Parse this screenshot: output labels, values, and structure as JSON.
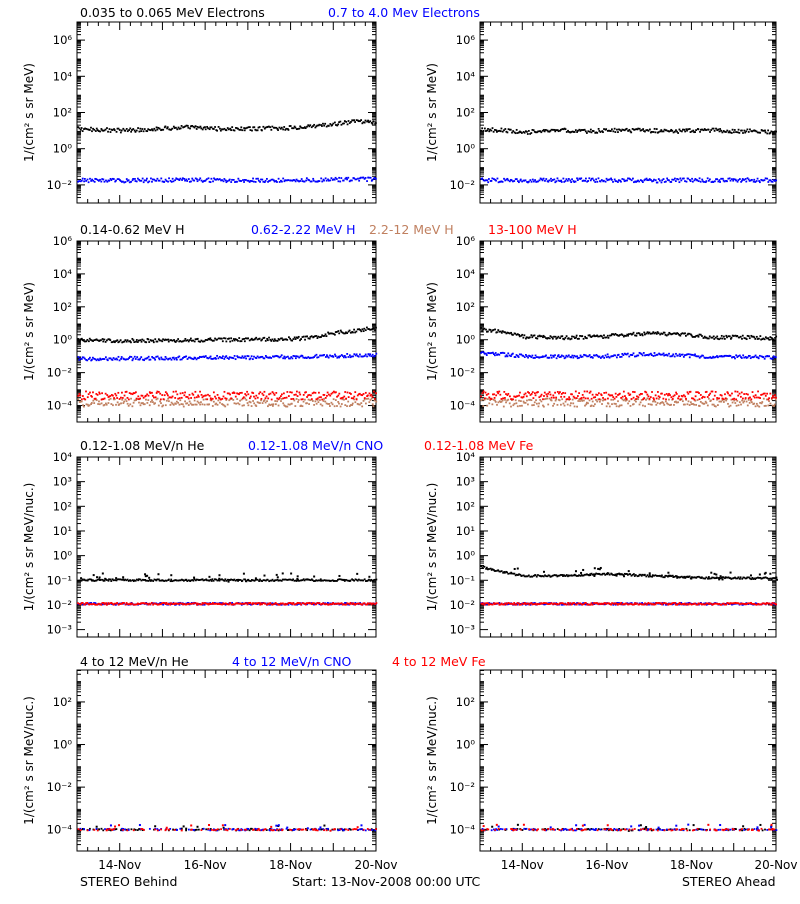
{
  "colors": {
    "black": "#000000",
    "blue": "#0000ff",
    "tan": "#c08060",
    "red": "#ff0000"
  },
  "footer": {
    "left": "STEREO Behind",
    "center": "Start: 13-Nov-2008 00:00 UTC",
    "right": "STEREO Ahead"
  },
  "x_ticks": [
    "14-Nov",
    "16-Nov",
    "18-Nov",
    "20-Nov"
  ],
  "rows": [
    {
      "ylabel": "1/(cm² s sr MeV)",
      "yticks": [
        {
          "v": -2,
          "label": "10⁻²"
        },
        {
          "v": 0,
          "label": "10⁰"
        },
        {
          "v": 2,
          "label": "10²"
        },
        {
          "v": 4,
          "label": "10⁴"
        },
        {
          "v": 6,
          "label": "10⁶"
        }
      ],
      "ylim_log10": [
        -3,
        7
      ],
      "legend": [
        {
          "text": "0.035 to 0.065 MeV Electrons",
          "color": "black"
        },
        {
          "text": "0.7 to 4.0 Mev Electrons",
          "color": "blue"
        }
      ]
    },
    {
      "ylabel": "1/(cm² s sr MeV)",
      "yticks": [
        {
          "v": -4,
          "label": "10⁻⁴"
        },
        {
          "v": -2,
          "label": "10⁻²"
        },
        {
          "v": 0,
          "label": "10⁰"
        },
        {
          "v": 2,
          "label": "10²"
        },
        {
          "v": 4,
          "label": "10⁴"
        },
        {
          "v": 6,
          "label": "10⁶"
        }
      ],
      "ylim_log10": [
        -5,
        6
      ],
      "legend": [
        {
          "text": "0.14-0.62 MeV H",
          "color": "black"
        },
        {
          "text": "0.62-2.22 MeV H",
          "color": "blue"
        },
        {
          "text": "2.2-12 MeV H",
          "color": "tan"
        },
        {
          "text": "13-100 MeV H",
          "color": "red"
        }
      ]
    },
    {
      "ylabel": "1/(cm² s sr MeV/nuc.)",
      "yticks": [
        {
          "v": -3,
          "label": "10⁻³"
        },
        {
          "v": -2,
          "label": "10⁻²"
        },
        {
          "v": -1,
          "label": "10⁻¹"
        },
        {
          "v": 0,
          "label": "10⁰"
        },
        {
          "v": 1,
          "label": "10¹"
        },
        {
          "v": 2,
          "label": "10²"
        },
        {
          "v": 3,
          "label": "10³"
        },
        {
          "v": 4,
          "label": "10⁴"
        }
      ],
      "ylim_log10": [
        -3.3,
        4
      ],
      "legend": [
        {
          "text": "0.12-1.08 MeV/n He",
          "color": "black"
        },
        {
          "text": "0.12-1.08 MeV/n CNO",
          "color": "blue"
        },
        {
          "text": "0.12-1.08 MeV Fe",
          "color": "red"
        }
      ]
    },
    {
      "ylabel": "1/(cm² s sr MeV/nuc.)",
      "yticks": [
        {
          "v": -4,
          "label": "10⁻⁴"
        },
        {
          "v": -2,
          "label": "10⁻²"
        },
        {
          "v": 0,
          "label": "10⁰"
        },
        {
          "v": 2,
          "label": "10²"
        }
      ],
      "ylim_log10": [
        -5,
        3.5
      ],
      "legend": [
        {
          "text": "4 to 12 MeV/n He",
          "color": "black"
        },
        {
          "text": "4 to 12 MeV/n CNO",
          "color": "blue"
        },
        {
          "text": "4 to 12 MeV Fe",
          "color": "red"
        }
      ]
    }
  ],
  "chart_data": [
    {
      "type": "scatter",
      "panel": "behind-electrons",
      "ylog": true,
      "xlim_days": [
        13,
        20
      ],
      "series": [
        {
          "name": "0.035 to 0.065 MeV Electrons",
          "color": "black",
          "x": [
            13,
            13.5,
            14,
            14.5,
            15,
            15.5,
            16,
            16.5,
            17,
            17.5,
            18,
            18.5,
            19,
            19.5,
            20
          ],
          "y": [
            12,
            11,
            10,
            11,
            13,
            15,
            13,
            12,
            12,
            13,
            14,
            16,
            22,
            30,
            28
          ]
        },
        {
          "name": "0.7 to 4.0 Mev Electrons",
          "color": "blue",
          "x": [
            13,
            14,
            15,
            16,
            17,
            18,
            19,
            20
          ],
          "y": [
            0.018,
            0.017,
            0.018,
            0.018,
            0.018,
            0.018,
            0.019,
            0.02
          ]
        }
      ]
    },
    {
      "type": "scatter",
      "panel": "ahead-electrons",
      "ylog": true,
      "xlim_days": [
        13,
        20
      ],
      "series": [
        {
          "name": "0.035 to 0.065 MeV Electrons",
          "color": "black",
          "x": [
            13,
            13.5,
            14,
            14.5,
            15,
            15.5,
            16,
            16.5,
            17,
            17.5,
            18,
            18.5,
            19,
            19.5,
            20
          ],
          "y": [
            12,
            10,
            8,
            9,
            10,
            9,
            10,
            10,
            10,
            9,
            10,
            10,
            9,
            9,
            8
          ]
        },
        {
          "name": "0.7 to 4.0 Mev Electrons",
          "color": "blue",
          "x": [
            13,
            14,
            15,
            16,
            17,
            18,
            19,
            20
          ],
          "y": [
            0.018,
            0.017,
            0.018,
            0.018,
            0.017,
            0.018,
            0.018,
            0.018
          ]
        }
      ]
    },
    {
      "type": "scatter",
      "panel": "behind-protons",
      "ylog": true,
      "xlim_days": [
        13,
        20
      ],
      "series": [
        {
          "name": "0.14-0.62 MeV H",
          "color": "black",
          "x": [
            13,
            14,
            15,
            16,
            17,
            18,
            18.5,
            19,
            19.5,
            20
          ],
          "y": [
            0.9,
            0.85,
            0.9,
            0.95,
            1,
            1.1,
            1.3,
            2.5,
            3.5,
            5
          ]
        },
        {
          "name": "0.62-2.22 MeV H",
          "color": "blue",
          "x": [
            13,
            14,
            15,
            16,
            17,
            18,
            19,
            20
          ],
          "y": [
            0.07,
            0.07,
            0.075,
            0.08,
            0.08,
            0.09,
            0.1,
            0.12
          ]
        },
        {
          "name": "2.2-12 MeV H",
          "color": "tan",
          "x": [
            13,
            14,
            15,
            16,
            17,
            18,
            19,
            20
          ],
          "y": [
            0.00015,
            0.00015,
            0.00015,
            0.00015,
            0.00015,
            0.00015,
            0.00015,
            0.00015
          ]
        },
        {
          "name": "13-100 MeV H",
          "color": "red",
          "x": [
            13,
            14,
            15,
            16,
            17,
            18,
            19,
            20
          ],
          "y": [
            0.0004,
            0.0004,
            0.0004,
            0.0004,
            0.0004,
            0.0004,
            0.0004,
            0.0004
          ]
        }
      ]
    },
    {
      "type": "scatter",
      "panel": "ahead-protons",
      "ylog": true,
      "xlim_days": [
        13,
        20
      ],
      "series": [
        {
          "name": "0.14-0.62 MeV H",
          "color": "black",
          "x": [
            13,
            13.5,
            14,
            15,
            16,
            16.5,
            17,
            17.5,
            18,
            18.5,
            19,
            19.5,
            20
          ],
          "y": [
            4,
            3,
            1.5,
            1.3,
            1.6,
            2,
            2.5,
            2.2,
            1.8,
            1.3,
            1.4,
            1.3,
            1.2
          ]
        },
        {
          "name": "0.62-2.22 MeV H",
          "color": "blue",
          "x": [
            13,
            14,
            15,
            16,
            17,
            18,
            19,
            20
          ],
          "y": [
            0.15,
            0.1,
            0.09,
            0.1,
            0.13,
            0.1,
            0.09,
            0.08
          ]
        },
        {
          "name": "2.2-12 MeV H",
          "color": "tan",
          "x": [
            13,
            14,
            15,
            16,
            17,
            18,
            19,
            20
          ],
          "y": [
            0.00015,
            0.00015,
            0.00015,
            0.00015,
            0.00015,
            0.00015,
            0.00015,
            0.00015
          ]
        },
        {
          "name": "13-100 MeV H",
          "color": "red",
          "x": [
            13,
            14,
            15,
            16,
            17,
            18,
            19,
            20
          ],
          "y": [
            0.0004,
            0.0004,
            0.0004,
            0.0004,
            0.0004,
            0.0004,
            0.0004,
            0.0004
          ]
        }
      ]
    },
    {
      "type": "scatter",
      "panel": "behind-suprathermal",
      "ylog": true,
      "xlim_days": [
        13,
        20
      ],
      "series": [
        {
          "name": "0.12-1.08 MeV/n He",
          "color": "black",
          "x": [
            13,
            14,
            15,
            16,
            17,
            18,
            19,
            20
          ],
          "y": [
            0.1,
            0.1,
            0.1,
            0.1,
            0.1,
            0.1,
            0.1,
            0.1
          ]
        },
        {
          "name": "0.12-1.08 MeV/n CNO",
          "color": "blue",
          "x": [
            13,
            14,
            15,
            16,
            17,
            18,
            19,
            20
          ],
          "y": [
            0.011,
            0.011,
            0.011,
            0.011,
            0.011,
            0.011,
            0.011,
            0.011
          ]
        },
        {
          "name": "0.12-1.08 MeV Fe",
          "color": "red",
          "x": [
            13,
            14,
            15,
            16,
            17,
            18,
            19,
            20
          ],
          "y": [
            0.011,
            0.011,
            0.011,
            0.011,
            0.011,
            0.011,
            0.011,
            0.011
          ]
        }
      ]
    },
    {
      "type": "scatter",
      "panel": "ahead-suprathermal",
      "ylog": true,
      "xlim_days": [
        13,
        20
      ],
      "series": [
        {
          "name": "0.12-1.08 MeV/n He",
          "color": "black",
          "x": [
            13,
            13.3,
            13.6,
            14,
            15,
            16,
            17,
            18,
            19,
            20
          ],
          "y": [
            0.35,
            0.25,
            0.2,
            0.15,
            0.15,
            0.18,
            0.15,
            0.13,
            0.12,
            0.12
          ]
        },
        {
          "name": "0.12-1.08 MeV/n CNO",
          "color": "blue",
          "x": [
            13,
            14,
            15,
            16,
            17,
            18,
            19,
            20
          ],
          "y": [
            0.011,
            0.011,
            0.011,
            0.011,
            0.011,
            0.011,
            0.011,
            0.011
          ]
        },
        {
          "name": "0.12-1.08 MeV Fe",
          "color": "red",
          "x": [
            13,
            14,
            15,
            16,
            17,
            18,
            19,
            20
          ],
          "y": [
            0.011,
            0.011,
            0.011,
            0.011,
            0.011,
            0.011,
            0.011,
            0.011
          ]
        }
      ]
    },
    {
      "type": "scatter",
      "panel": "behind-energetic",
      "ylog": true,
      "xlim_days": [
        13,
        20
      ],
      "series": [
        {
          "name": "4 to 12 MeV/n He",
          "color": "black",
          "x": [
            13,
            14,
            15,
            16,
            17,
            18,
            19,
            20
          ],
          "y": [
            0.0001,
            0.0001,
            0.0001,
            0.0001,
            0.0001,
            0.0001,
            0.0001,
            0.0001
          ]
        },
        {
          "name": "4 to 12 MeV/n CNO",
          "color": "blue",
          "x": [
            13,
            14,
            15,
            16,
            17,
            18,
            19,
            20
          ],
          "y": [
            0.0001,
            0.0001,
            0.0001,
            0.0001,
            0.0001,
            0.0001,
            0.0001,
            0.0001
          ]
        },
        {
          "name": "4 to 12 MeV Fe",
          "color": "red",
          "x": [
            13,
            14,
            15,
            16,
            17,
            18,
            19,
            20
          ],
          "y": [
            0.0001,
            0.0001,
            0.0001,
            0.0001,
            0.0001,
            0.0001,
            0.0001,
            0.0001
          ]
        }
      ]
    },
    {
      "type": "scatter",
      "panel": "ahead-energetic",
      "ylog": true,
      "xlim_days": [
        13,
        20
      ],
      "series": [
        {
          "name": "4 to 12 MeV/n He",
          "color": "black",
          "x": [
            13,
            14,
            15,
            16,
            17,
            18,
            19,
            20
          ],
          "y": [
            0.0001,
            0.0001,
            0.0001,
            0.0001,
            0.0001,
            0.0001,
            0.0001,
            0.0001
          ]
        },
        {
          "name": "4 to 12 MeV/n CNO",
          "color": "blue",
          "x": [
            13,
            14,
            15,
            16,
            17,
            18,
            19,
            20
          ],
          "y": [
            0.0001,
            0.0001,
            0.0001,
            0.0001,
            0.0001,
            0.0001,
            0.0001,
            0.0001
          ]
        },
        {
          "name": "4 to 12 MeV Fe",
          "color": "red",
          "x": [
            13,
            14,
            15,
            16,
            17,
            18,
            19,
            20
          ],
          "y": [
            0.0001,
            0.0001,
            0.0001,
            0.0001,
            0.0001,
            0.0001,
            0.0001,
            0.0001
          ]
        }
      ]
    }
  ]
}
